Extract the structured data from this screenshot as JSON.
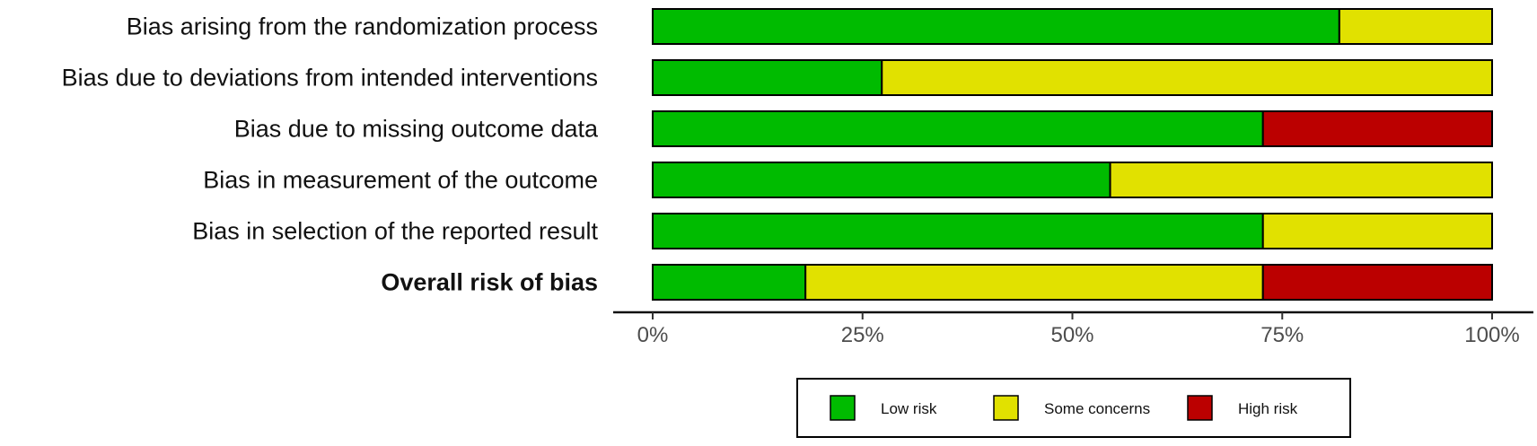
{
  "chart_data": {
    "type": "bar",
    "stacked": true,
    "orientation": "horizontal",
    "categories": [
      "Bias arising from the randomization process",
      "Bias due to deviations from intended interventions",
      "Bias due to missing outcome data",
      "Bias in measurement of the outcome",
      "Bias in selection of the reported result",
      "Overall risk of bias"
    ],
    "bold_categories": [
      "Overall risk of bias"
    ],
    "series": [
      {
        "name": "Low risk",
        "color": "#00bb00",
        "values": [
          81.8,
          27.3,
          72.7,
          54.5,
          72.7,
          18.2
        ]
      },
      {
        "name": "Some concerns",
        "color": "#e1e100",
        "values": [
          18.2,
          72.7,
          0,
          45.5,
          27.3,
          54.5
        ]
      },
      {
        "name": "High risk",
        "color": "#bb0000",
        "values": [
          0,
          0,
          27.3,
          0,
          0,
          27.3
        ]
      }
    ],
    "xlim": [
      0,
      100
    ],
    "xticks": [
      "0%",
      "25%",
      "50%",
      "75%",
      "100%"
    ],
    "xtick_values": [
      0,
      25,
      50,
      75,
      100
    ],
    "legend": [
      "Low risk",
      "Some concerns",
      "High risk"
    ],
    "legend_position": "bottom",
    "grid": false
  }
}
